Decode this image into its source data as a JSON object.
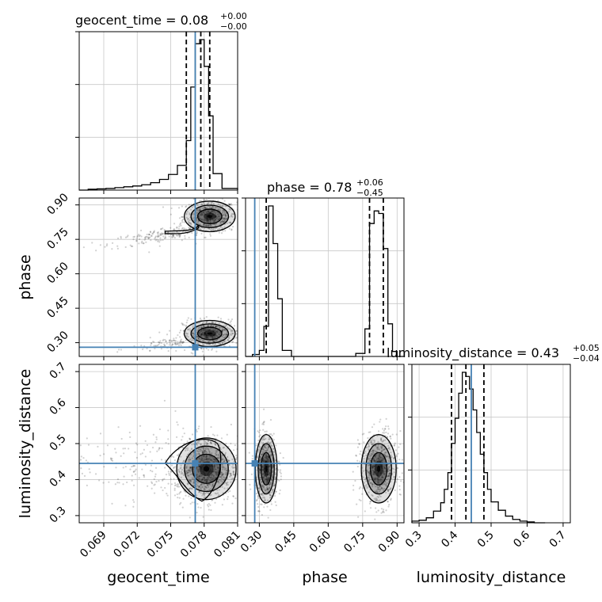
{
  "chart_data": {
    "type": "corner",
    "parameters": [
      {
        "name": "geocent_time",
        "axis_label": "geocent_time",
        "range": [
          0.0668,
          0.081
        ],
        "ticks": [
          "0.069",
          "0.072",
          "0.075",
          "0.078",
          "0.081"
        ],
        "tick_values": [
          0.069,
          0.072,
          0.075,
          0.078,
          0.081
        ],
        "title_prefix": "geocent_time = ",
        "title_value": "0.08",
        "title_plus": "+0.00",
        "title_minus": "−0.00",
        "injection": 0.0772,
        "quantiles": [
          0.0764,
          0.0777,
          0.0785
        ]
      },
      {
        "name": "phase",
        "axis_label": "phase",
        "range": [
          0.24,
          0.93
        ],
        "ticks": [
          "0.30",
          "0.45",
          "0.60",
          "0.75",
          "0.90"
        ],
        "tick_values": [
          0.3,
          0.45,
          0.6,
          0.75,
          0.9
        ],
        "title_prefix": "phase = ",
        "title_value": "0.78",
        "title_plus": "+0.06",
        "title_minus": "−0.45",
        "injection": 0.28,
        "quantiles": [
          0.33,
          0.78,
          0.84
        ]
      },
      {
        "name": "luminosity_distance",
        "axis_label": "luminosity_distance",
        "range": [
          0.28,
          0.72
        ],
        "ticks": [
          "0.3",
          "0.4",
          "0.5",
          "0.6",
          "0.7"
        ],
        "tick_values": [
          0.3,
          0.4,
          0.5,
          0.6,
          0.7
        ],
        "title_prefix": "luminosity_distance = ",
        "title_value": "0.43",
        "title_plus": "+0.05",
        "title_minus": "−0.04",
        "injection": 0.445,
        "quantiles": [
          0.39,
          0.43,
          0.48
        ]
      }
    ],
    "histograms": [
      {
        "parameter": "geocent_time",
        "bin_edges": [
          0.0668,
          0.0676,
          0.0684,
          0.0692,
          0.07,
          0.0708,
          0.0716,
          0.0724,
          0.0732,
          0.074,
          0.0748,
          0.0756,
          0.0764,
          0.0768,
          0.0772,
          0.0776,
          0.078,
          0.0784,
          0.0788,
          0.0796,
          0.081
        ],
        "counts": [
          0,
          2,
          3,
          4,
          6,
          8,
          10,
          13,
          18,
          26,
          38,
          60,
          120,
          250,
          355,
          365,
          300,
          180,
          40,
          4
        ]
      },
      {
        "parameter": "phase",
        "bin_edges": [
          0.24,
          0.27,
          0.3,
          0.32,
          0.34,
          0.36,
          0.38,
          0.4,
          0.44,
          0.48,
          0.52,
          0.56,
          0.6,
          0.64,
          0.68,
          0.72,
          0.76,
          0.78,
          0.8,
          0.82,
          0.84,
          0.86,
          0.88,
          0.9,
          0.93
        ],
        "counts": [
          0,
          4,
          12,
          60,
          300,
          225,
          115,
          12,
          0,
          0,
          0,
          0,
          0,
          0,
          0,
          6,
          55,
          265,
          290,
          285,
          215,
          65,
          10,
          0
        ]
      },
      {
        "parameter": "luminosity_distance",
        "bin_edges": [
          0.28,
          0.3,
          0.32,
          0.34,
          0.36,
          0.37,
          0.38,
          0.39,
          0.4,
          0.41,
          0.42,
          0.43,
          0.44,
          0.45,
          0.46,
          0.47,
          0.48,
          0.49,
          0.5,
          0.52,
          0.54,
          0.56,
          0.58,
          0.6,
          0.62,
          0.65
        ],
        "counts": [
          2,
          3,
          6,
          14,
          24,
          40,
          60,
          95,
          125,
          155,
          180,
          175,
          160,
          135,
          108,
          82,
          60,
          40,
          25,
          15,
          8,
          4,
          2,
          1,
          0
        ]
      }
    ],
    "pairs": [
      {
        "x": "geocent_time",
        "y": "phase",
        "blobs": [
          {
            "cx": 0.0785,
            "cy": 0.85,
            "sx": 0.0012,
            "sy": 0.035,
            "n": 520
          },
          {
            "cx": 0.0745,
            "cy": 0.77,
            "sx": 0.0025,
            "sy": 0.016,
            "n": 200,
            "skew": 0.02
          },
          {
            "cx": 0.0785,
            "cy": 0.34,
            "sx": 0.0012,
            "sy": 0.03,
            "n": 480
          },
          {
            "cx": 0.0755,
            "cy": 0.3,
            "sx": 0.002,
            "sy": 0.015,
            "n": 120,
            "skew": 0.012
          }
        ]
      },
      {
        "x": "geocent_time",
        "y": "luminosity_distance",
        "blobs": [
          {
            "cx": 0.0782,
            "cy": 0.43,
            "sx": 0.0014,
            "sy": 0.045,
            "n": 900
          },
          {
            "cx": 0.073,
            "cy": 0.44,
            "sx": 0.004,
            "sy": 0.05,
            "n": 220
          }
        ]
      },
      {
        "x": "phase",
        "y": "luminosity_distance",
        "blobs": [
          {
            "cx": 0.33,
            "cy": 0.43,
            "sx": 0.025,
            "sy": 0.05,
            "n": 600
          },
          {
            "cx": 0.82,
            "cy": 0.43,
            "sx": 0.04,
            "sy": 0.05,
            "n": 650
          }
        ]
      }
    ],
    "colors": {
      "injection": "#4682b4",
      "hist": "#000000",
      "grid": "#c8c8c8",
      "points": "#000000"
    }
  }
}
